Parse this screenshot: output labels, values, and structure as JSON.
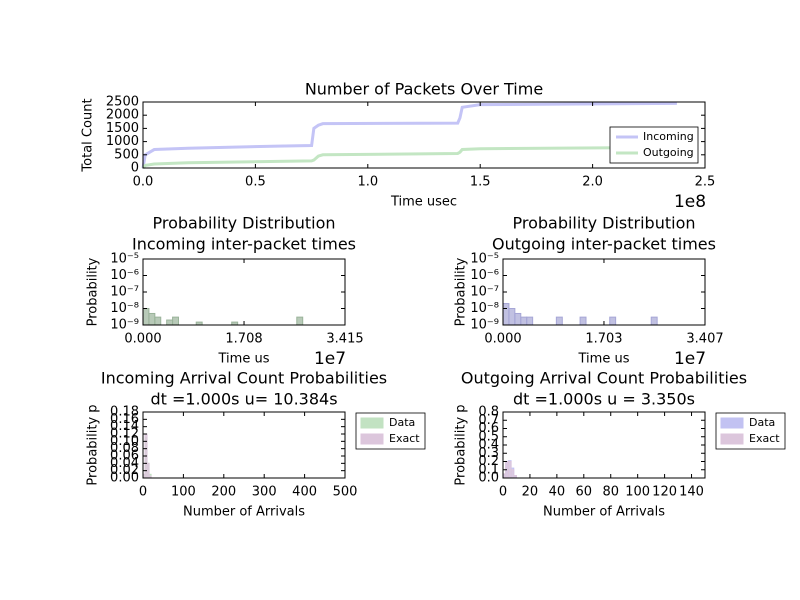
{
  "chart_data": [
    {
      "type": "line",
      "title": "Number of Packets Over Time",
      "xlabel": "Time usec",
      "ylabel": "Total Count",
      "x_offset_label": "1e8",
      "x": [
        0,
        1000000,
        5000000,
        20000000,
        60000000,
        75000000,
        76000000,
        78000000,
        80000000,
        140000000,
        141000000,
        142000000,
        150000000,
        237500000
      ],
      "series": [
        {
          "name": "Incoming",
          "color": "#c4c4f6",
          "values": [
            0,
            500,
            700,
            750,
            830,
            850,
            1500,
            1620,
            1680,
            1700,
            1900,
            2300,
            2400,
            2450
          ]
        },
        {
          "name": "Outgoing",
          "color": "#c3e6c3",
          "values": [
            0,
            100,
            150,
            200,
            250,
            270,
            300,
            450,
            500,
            550,
            600,
            700,
            730,
            780
          ]
        }
      ],
      "xlim": [
        0,
        250000000
      ],
      "xticks": [
        {
          "value": 0,
          "label": "0.0"
        },
        {
          "value": 50000000,
          "label": "0.5"
        },
        {
          "value": 100000000,
          "label": "1.0"
        },
        {
          "value": 150000000,
          "label": "1.5"
        },
        {
          "value": 200000000,
          "label": "2.0"
        },
        {
          "value": 250000000,
          "label": "2.5"
        }
      ],
      "ylim": [
        0,
        2500
      ],
      "yticks": [
        0,
        500,
        1000,
        1500,
        2000,
        2500
      ],
      "legend": "lower right"
    },
    {
      "type": "histogram",
      "title": "Probability Distribution",
      "subtitle": "Incoming inter-packet times",
      "xlabel": "Time us",
      "ylabel": "Probability",
      "x_offset_label": "1e7",
      "yscale": "log",
      "color": "#9ab39a",
      "bins": [
        0,
        1000000,
        2000000,
        3000000,
        4000000,
        5000000,
        6000000,
        7000000,
        8000000,
        9000000,
        10000000,
        11000000,
        12000000,
        13000000,
        14000000,
        15000000,
        16000000,
        17000000,
        18000000,
        19000000,
        20000000,
        21000000,
        22000000,
        23000000,
        24000000,
        25000000,
        26000000,
        27000000,
        28000000,
        29000000,
        30000000,
        31000000,
        32000000,
        33000000,
        34000000
      ],
      "values": [
        1e-08,
        5e-09,
        3e-09,
        null,
        2e-09,
        3e-09,
        null,
        null,
        null,
        1.5e-09,
        null,
        null,
        null,
        null,
        null,
        1.5e-09,
        null,
        null,
        null,
        null,
        null,
        null,
        null,
        null,
        null,
        null,
        3e-09,
        null,
        null,
        null,
        null,
        null,
        null,
        null
      ],
      "xlim": [
        0,
        34150000
      ],
      "xticks": [
        {
          "value": 0,
          "label": "0.000"
        },
        {
          "value": 17080000,
          "label": "1.708"
        },
        {
          "value": 34150000,
          "label": "3.415"
        }
      ],
      "ylim": [
        1e-09,
        1e-05
      ],
      "yticks": [
        {
          "value": 1e-09,
          "label": "10⁻⁹"
        },
        {
          "value": 1e-08,
          "label": "10⁻⁸"
        },
        {
          "value": 1e-07,
          "label": "10⁻⁷"
        },
        {
          "value": 1e-06,
          "label": "10⁻⁶"
        },
        {
          "value": 1e-05,
          "label": "10⁻⁵"
        }
      ]
    },
    {
      "type": "histogram",
      "title": "Probability Distribution",
      "subtitle": "Outgoing inter-packet times",
      "xlabel": "Time us",
      "ylabel": "Probability",
      "x_offset_label": "1e7",
      "yscale": "log",
      "color": "#a6a6d6",
      "bins": [
        0,
        1000000,
        2000000,
        3000000,
        4000000,
        5000000,
        6000000,
        7000000,
        8000000,
        9000000,
        10000000,
        11000000,
        12000000,
        13000000,
        14000000,
        15000000,
        16000000,
        17000000,
        18000000,
        19000000,
        20000000,
        21000000,
        22000000,
        23000000,
        24000000,
        25000000,
        26000000,
        27000000,
        28000000,
        29000000,
        30000000,
        31000000,
        32000000,
        33000000,
        34000000
      ],
      "values": [
        2e-08,
        1e-08,
        5e-09,
        3e-09,
        3e-09,
        null,
        null,
        null,
        null,
        3e-09,
        null,
        null,
        null,
        3e-09,
        null,
        null,
        null,
        null,
        3e-09,
        null,
        null,
        null,
        null,
        null,
        null,
        3e-09,
        null,
        null,
        null,
        null,
        null,
        null,
        null,
        null
      ],
      "xlim": [
        0,
        34070000
      ],
      "xticks": [
        {
          "value": 0,
          "label": "0.000"
        },
        {
          "value": 17030000,
          "label": "1.703"
        },
        {
          "value": 34070000,
          "label": "3.407"
        }
      ],
      "ylim": [
        1e-09,
        1e-05
      ],
      "yticks": [
        {
          "value": 1e-09,
          "label": "10⁻⁹"
        },
        {
          "value": 1e-08,
          "label": "10⁻⁸"
        },
        {
          "value": 1e-07,
          "label": "10⁻⁷"
        },
        {
          "value": 1e-06,
          "label": "10⁻⁶"
        },
        {
          "value": 1e-05,
          "label": "10⁻⁵"
        }
      ]
    },
    {
      "type": "histogram",
      "title": "Incoming Arrival Count Probabilities",
      "subtitle": "dt =1.000s u= 10.384s",
      "xlabel": "Number of Arrivals",
      "ylabel": "Probability p",
      "bins": [
        0,
        5,
        10,
        15,
        20,
        25
      ],
      "series": [
        {
          "name": "Data",
          "color": "#c2e2c2",
          "values": [
            0.01,
            0.11,
            0.04,
            0.01,
            0
          ]
        },
        {
          "name": "Exact",
          "color": "#dcc6dc",
          "values": [
            0.01,
            0.12,
            0.04,
            0.005,
            0
          ]
        }
      ],
      "xlim": [
        0,
        500
      ],
      "xticks": [
        0,
        100,
        200,
        300,
        400,
        500
      ],
      "ylim": [
        0,
        0.18
      ],
      "yticks": [
        {
          "value": 0,
          "label": "0.00"
        },
        {
          "value": 0.02,
          "label": "0.02"
        },
        {
          "value": 0.04,
          "label": "0.04"
        },
        {
          "value": 0.06,
          "label": "0.06"
        },
        {
          "value": 0.08,
          "label": "0.08"
        },
        {
          "value": 0.1,
          "label": "0.10"
        },
        {
          "value": 0.12,
          "label": "0.12"
        },
        {
          "value": 0.14,
          "label": "0.14"
        },
        {
          "value": 0.16,
          "label": "0.16"
        },
        {
          "value": 0.18,
          "label": "0.18"
        }
      ],
      "legend": "outside right"
    },
    {
      "type": "histogram",
      "title": "Outgoing Arrival Count Probabilities",
      "subtitle": "dt =1.000s u = 3.350s",
      "xlabel": "Number of Arrivals",
      "ylabel": "Probability p",
      "bins": [
        0,
        2,
        4,
        6,
        8,
        10
      ],
      "series": [
        {
          "name": "Data",
          "color": "#c2c2f2",
          "values": [
            0.04,
            0.19,
            0.21,
            0.12,
            0.02
          ]
        },
        {
          "name": "Exact",
          "color": "#dcc6dc",
          "values": [
            0.05,
            0.2,
            0.2,
            0.1,
            0.03
          ]
        }
      ],
      "xlim": [
        0,
        150
      ],
      "xticks": [
        0,
        20,
        40,
        60,
        80,
        100,
        120,
        140
      ],
      "ylim": [
        0,
        0.8
      ],
      "yticks": [
        {
          "value": 0,
          "label": "0.0"
        },
        {
          "value": 0.1,
          "label": "0.1"
        },
        {
          "value": 0.2,
          "label": "0.2"
        },
        {
          "value": 0.3,
          "label": "0.3"
        },
        {
          "value": 0.4,
          "label": "0.4"
        },
        {
          "value": 0.5,
          "label": "0.5"
        },
        {
          "value": 0.6,
          "label": "0.6"
        },
        {
          "value": 0.7,
          "label": "0.7"
        },
        {
          "value": 0.8,
          "label": "0.8"
        }
      ],
      "legend": "outside right"
    }
  ]
}
